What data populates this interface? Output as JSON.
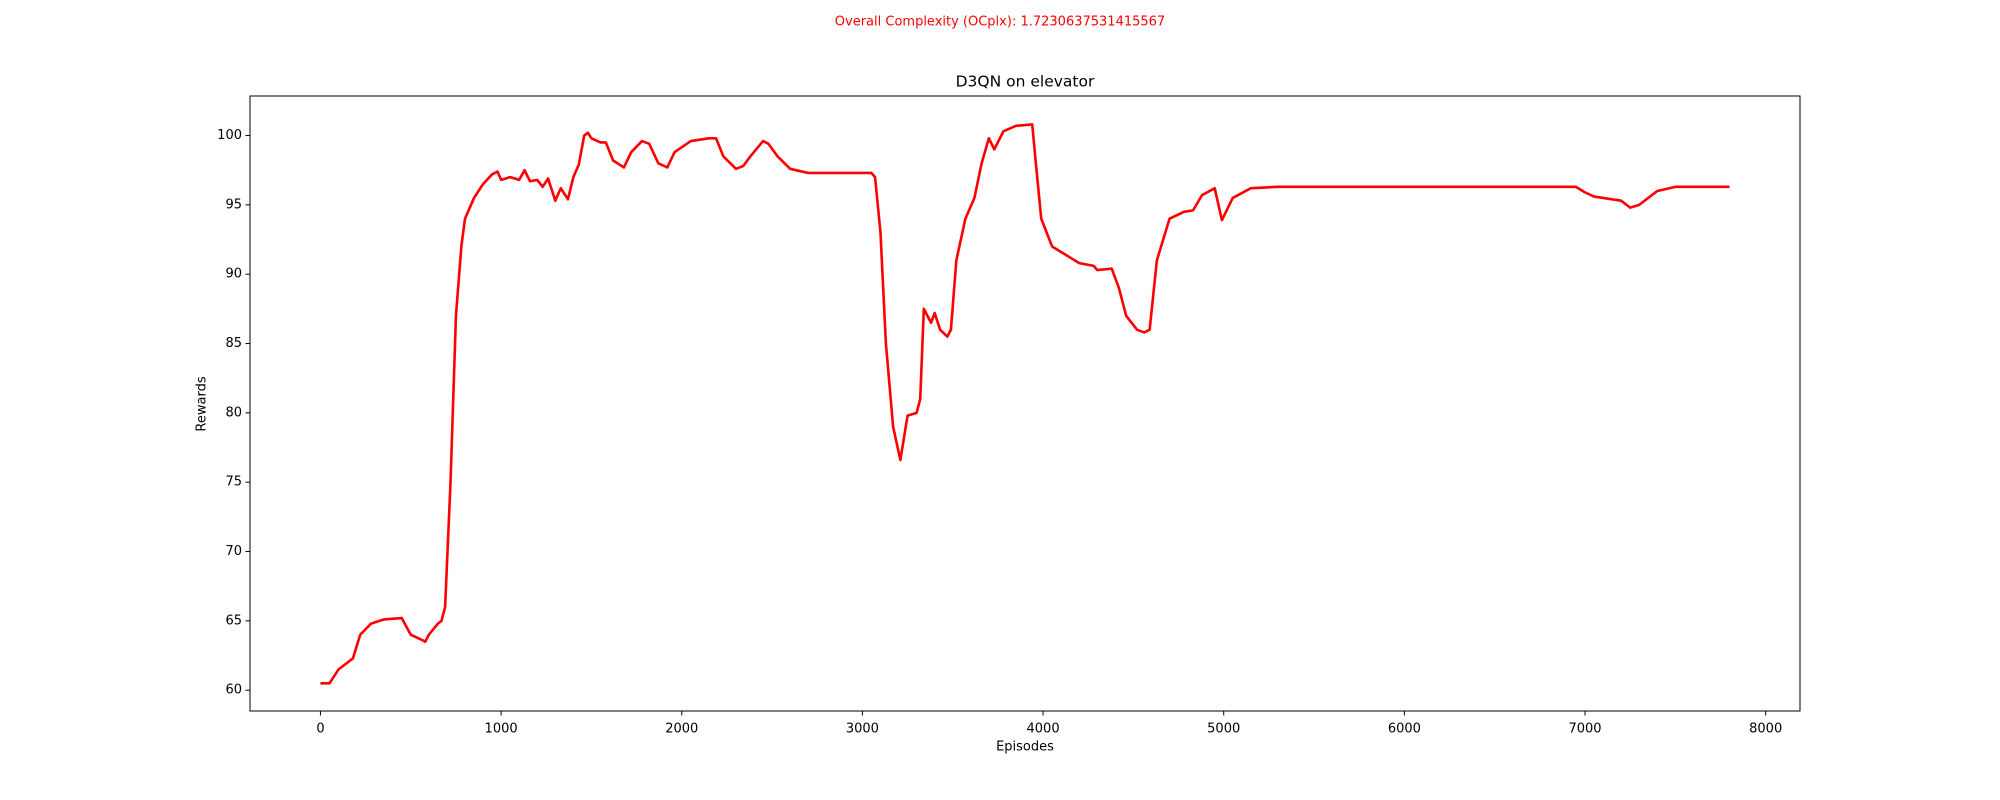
{
  "chart_data": {
    "type": "line",
    "suptitle": "Overall Complexity (OCplx): 1.7230637531415567",
    "title": "D3QN on elevator",
    "xlabel": "Episodes",
    "ylabel": "Rewards",
    "color": "#ff0000",
    "x": [
      0,
      50,
      100,
      150,
      180,
      220,
      280,
      350,
      450,
      500,
      550,
      580,
      600,
      650,
      670,
      690,
      720,
      750,
      780,
      800,
      850,
      900,
      950,
      980,
      1000,
      1050,
      1100,
      1130,
      1160,
      1200,
      1230,
      1260,
      1300,
      1330,
      1370,
      1400,
      1430,
      1460,
      1480,
      1500,
      1550,
      1580,
      1620,
      1680,
      1720,
      1780,
      1820,
      1870,
      1920,
      1960,
      2050,
      2150,
      2190,
      2230,
      2300,
      2340,
      2380,
      2450,
      2480,
      2530,
      2600,
      2700,
      2900,
      3050,
      3070,
      3100,
      3130,
      3170,
      3210,
      3250,
      3300,
      3320,
      3340,
      3380,
      3400,
      3430,
      3470,
      3490,
      3520,
      3570,
      3620,
      3660,
      3700,
      3730,
      3780,
      3850,
      3940,
      3960,
      3990,
      4050,
      4150,
      4200,
      4280,
      4300,
      4380,
      4420,
      4460,
      4520,
      4560,
      4590,
      4630,
      4700,
      4780,
      4830,
      4880,
      4950,
      4990,
      5050,
      5150,
      5300,
      6950,
      7000,
      7050,
      7150,
      7200,
      7250,
      7300,
      7400,
      7500,
      7800
    ],
    "values": [
      60.5,
      60.5,
      61.5,
      62,
      62.3,
      64,
      64.8,
      65.1,
      65.2,
      64,
      63.7,
      63.5,
      64,
      64.8,
      65,
      66,
      75,
      87,
      92,
      94,
      95.5,
      96.5,
      97.2,
      97.4,
      96.8,
      97,
      96.8,
      97.5,
      96.7,
      96.8,
      96.3,
      96.9,
      95.3,
      96.2,
      95.4,
      97,
      97.9,
      100,
      100.2,
      99.8,
      99.5,
      99.5,
      98.2,
      97.7,
      98.8,
      99.6,
      99.4,
      98,
      97.7,
      98.8,
      99.6,
      99.8,
      99.8,
      98.5,
      97.6,
      97.8,
      98.5,
      99.6,
      99.4,
      98.5,
      97.6,
      97.3,
      97.3,
      97.3,
      97,
      93,
      85,
      79,
      76.6,
      79.8,
      80,
      81,
      87.5,
      86.5,
      87.2,
      86,
      85.5,
      86,
      91,
      94,
      95.5,
      98,
      99.8,
      99,
      100.3,
      100.7,
      100.8,
      98,
      94,
      92,
      91.2,
      90.8,
      90.6,
      90.3,
      90.4,
      89,
      87,
      86,
      85.8,
      86,
      91,
      94,
      94.5,
      94.6,
      95.7,
      96.2,
      93.9,
      95.5,
      96.2,
      96.3,
      96.3,
      95.9,
      95.6,
      95.4,
      95.3,
      94.8,
      95,
      96,
      96.3,
      96.3
    ],
    "xlim": [
      -390,
      8190
    ],
    "xticks": [
      0,
      1000,
      2000,
      3000,
      4000,
      5000,
      6000,
      7000,
      8000
    ],
    "ylim": [
      58.5,
      102.85
    ],
    "yticks": [
      60,
      65,
      70,
      75,
      80,
      85,
      90,
      95,
      100
    ]
  }
}
